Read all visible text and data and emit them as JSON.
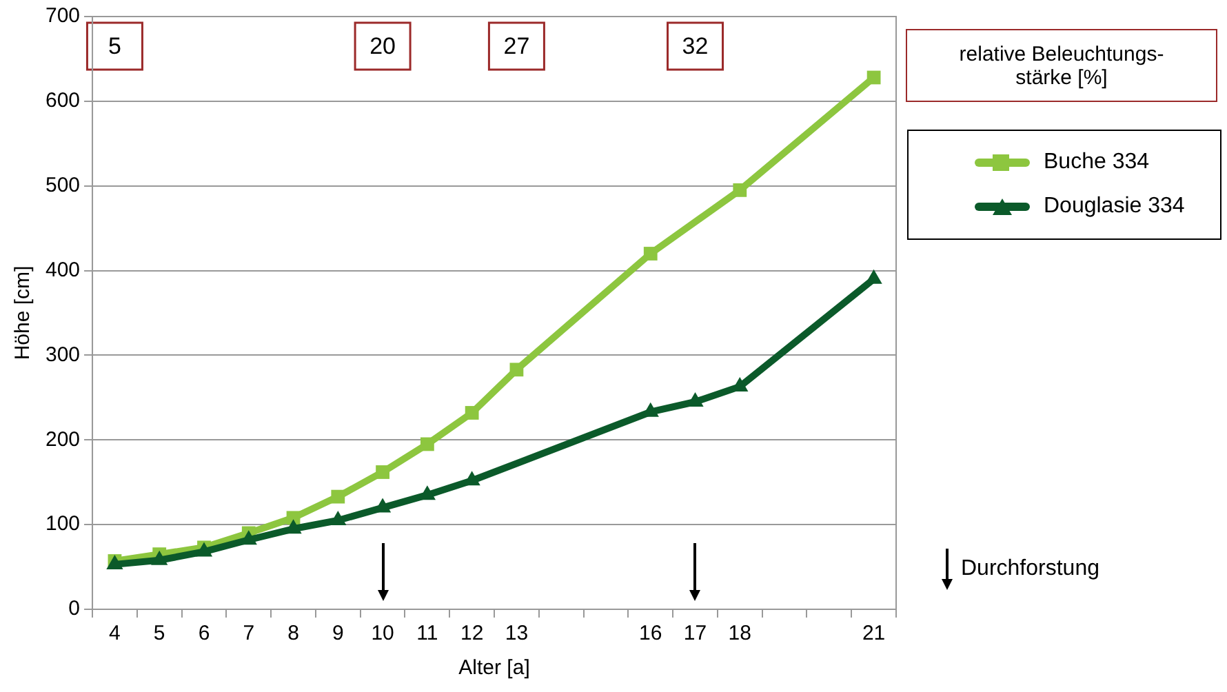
{
  "chart_data": {
    "type": "line",
    "xlabel": "Alter [a]",
    "ylabel": "Höhe [cm]",
    "categories": [
      "4",
      "5",
      "6",
      "7",
      "8",
      "9",
      "10",
      "11",
      "12",
      "13",
      null,
      null,
      "16",
      "17",
      "18",
      null,
      null,
      "21"
    ],
    "series": [
      {
        "name": "Buche 334",
        "color": "#8dc63f",
        "marker": "square",
        "values": [
          57,
          65,
          73,
          90,
          108,
          133,
          162,
          195,
          232,
          283,
          null,
          null,
          420,
          null,
          495,
          null,
          null,
          628
        ]
      },
      {
        "name": "Douglasie 334",
        "color": "#0b5a2a",
        "marker": "triangle",
        "values": [
          53,
          58,
          68,
          82,
          95,
          105,
          120,
          135,
          152,
          null,
          null,
          null,
          233,
          245,
          263,
          null,
          null,
          390
        ]
      }
    ],
    "ylim": [
      0,
      700
    ],
    "yticks": [
      0,
      100,
      200,
      300,
      400,
      500,
      600,
      700
    ],
    "grid": "y",
    "legend": "right",
    "line_style": "solid",
    "annotations": [
      {
        "text": "5",
        "x": "4",
        "y": 665
      },
      {
        "text": "20",
        "x": "10",
        "y": 665
      },
      {
        "text": "27",
        "x": "13",
        "y": 665
      },
      {
        "text": "32",
        "x": "17",
        "y": 665
      },
      "relative Beleuchtungs-stärke [%]",
      "Durchforstung"
    ],
    "ref_lines": [
      {
        "axis": "x",
        "value": "10"
      },
      {
        "axis": "x",
        "value": "17"
      }
    ]
  }
}
